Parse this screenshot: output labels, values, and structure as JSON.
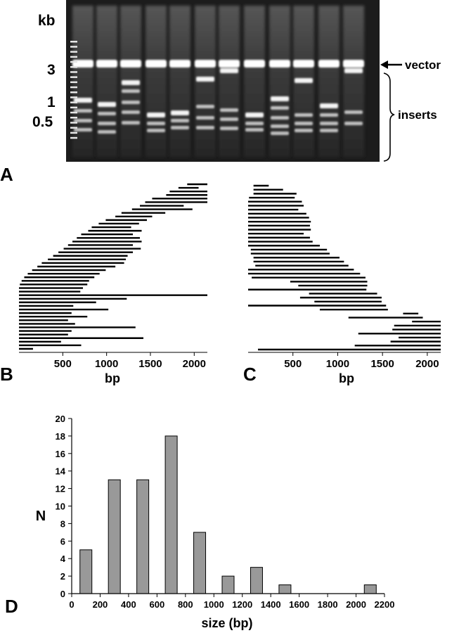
{
  "panel_a": {
    "panel_letter": "A",
    "unit_label": "kb",
    "size_markers": [
      "3",
      "1",
      "0.5"
    ],
    "vector_label": "vector",
    "inserts_label": "inserts",
    "gel_background": "#1c1c1c",
    "band_color": "#ffffff"
  },
  "chart_data": [
    {
      "type": "bar",
      "panel": "B",
      "xlabel": "bp",
      "xticks": [
        500,
        1000,
        1500,
        2000
      ],
      "xlim": [
        0,
        2150
      ],
      "direction": "clones aligned to 3' end",
      "segments": [
        [
          1920,
          2150
        ],
        [
          1820,
          2050
        ],
        [
          1720,
          2150
        ],
        [
          1680,
          2150
        ],
        [
          1520,
          2150
        ],
        [
          1440,
          2150
        ],
        [
          1380,
          1880
        ],
        [
          1290,
          1980
        ],
        [
          1170,
          1670
        ],
        [
          1100,
          1520
        ],
        [
          990,
          1460
        ],
        [
          910,
          1370
        ],
        [
          830,
          1280
        ],
        [
          790,
          1400
        ],
        [
          710,
          1300
        ],
        [
          660,
          1380
        ],
        [
          610,
          1400
        ],
        [
          560,
          1300
        ],
        [
          510,
          1390
        ],
        [
          450,
          1300
        ],
        [
          390,
          1240
        ],
        [
          330,
          1220
        ],
        [
          260,
          1200
        ],
        [
          210,
          1100
        ],
        [
          150,
          990
        ],
        [
          100,
          920
        ],
        [
          60,
          860
        ],
        [
          30,
          800
        ],
        [
          10,
          780
        ],
        [
          0,
          730
        ],
        [
          0,
          700
        ],
        [
          0,
          2150
        ],
        [
          0,
          1230
        ],
        [
          0,
          880
        ],
        [
          0,
          620
        ],
        [
          0,
          1020
        ],
        [
          0,
          600
        ],
        [
          0,
          780
        ],
        [
          0,
          560
        ],
        [
          0,
          640
        ],
        [
          0,
          1330
        ],
        [
          0,
          600
        ],
        [
          0,
          560
        ],
        [
          0,
          1420
        ],
        [
          0,
          480
        ],
        [
          0,
          710
        ],
        [
          0,
          160
        ]
      ]
    },
    {
      "type": "bar",
      "panel": "C",
      "xlabel": "bp",
      "xticks": [
        500,
        1000,
        1500,
        2000
      ],
      "xlim": [
        0,
        2150
      ],
      "direction": "clones aligned to 5' end",
      "segments": [
        [
          60,
          230
        ],
        [
          60,
          390
        ],
        [
          60,
          540
        ],
        [
          10,
          520
        ],
        [
          0,
          600
        ],
        [
          0,
          620
        ],
        [
          0,
          560
        ],
        [
          0,
          650
        ],
        [
          0,
          680
        ],
        [
          0,
          700
        ],
        [
          0,
          690
        ],
        [
          0,
          700
        ],
        [
          0,
          620
        ],
        [
          0,
          690
        ],
        [
          0,
          720
        ],
        [
          0,
          800
        ],
        [
          30,
          880
        ],
        [
          30,
          910
        ],
        [
          60,
          1020
        ],
        [
          60,
          1070
        ],
        [
          80,
          1120
        ],
        [
          0,
          1180
        ],
        [
          0,
          1250
        ],
        [
          40,
          1310
        ],
        [
          470,
          1330
        ],
        [
          560,
          1330
        ],
        [
          0,
          1320
        ],
        [
          680,
          1440
        ],
        [
          580,
          1490
        ],
        [
          740,
          1490
        ],
        [
          0,
          1540
        ],
        [
          800,
          1560
        ],
        [
          1730,
          1900
        ],
        [
          1120,
          1950
        ],
        [
          1830,
          2150
        ],
        [
          1630,
          2150
        ],
        [
          1610,
          2150
        ],
        [
          1230,
          2150
        ],
        [
          1680,
          2150
        ],
        [
          1590,
          2150
        ],
        [
          1190,
          2150
        ],
        [
          110,
          2150
        ]
      ]
    },
    {
      "type": "bar",
      "panel": "D",
      "title": "",
      "xlabel": "size (bp)",
      "ylabel": "N",
      "ylim": [
        0,
        20
      ],
      "xlim": [
        0,
        2200
      ],
      "yticks": [
        0,
        2,
        4,
        6,
        8,
        10,
        12,
        14,
        16,
        18,
        20
      ],
      "xticks": [
        0,
        200,
        400,
        600,
        800,
        1000,
        1200,
        1400,
        1600,
        1800,
        2000,
        2200
      ],
      "categories": [
        100,
        300,
        500,
        700,
        900,
        1100,
        1300,
        1500,
        2100
      ],
      "values": [
        5,
        13,
        13,
        18,
        7,
        2,
        3,
        1,
        1
      ],
      "bar_color": "#999999"
    }
  ],
  "panel_letters": {
    "b": "B",
    "c": "C",
    "d": "D"
  }
}
